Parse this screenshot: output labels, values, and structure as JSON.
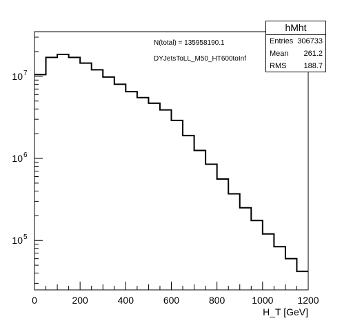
{
  "chart_data": {
    "type": "histogram",
    "title": "",
    "xlabel": "H_T [GeV]",
    "ylabel": "",
    "y_scale": "log",
    "xlim": [
      0,
      1200
    ],
    "ylim": [
      25000,
      35000000
    ],
    "x_ticks": [
      "0",
      "200",
      "400",
      "600",
      "800",
      "1000",
      "1200"
    ],
    "y_ticks": [
      {
        "base": "10",
        "exp": "5",
        "value": 100000
      },
      {
        "base": "10",
        "exp": "6",
        "value": 1000000
      },
      {
        "base": "10",
        "exp": "7",
        "value": 10000000
      }
    ],
    "bin_edges": [
      0,
      50,
      100,
      150,
      200,
      250,
      300,
      350,
      400,
      450,
      500,
      550,
      600,
      650,
      700,
      750,
      800,
      850,
      900,
      950,
      1000,
      1050,
      1100,
      1150,
      1200
    ],
    "values": [
      10500000,
      17000000,
      18500000,
      17000000,
      14500000,
      12000000,
      9800000,
      8000000,
      6500000,
      5500000,
      4700000,
      3900000,
      2900000,
      1900000,
      1250000,
      850000,
      560000,
      370000,
      250000,
      175000,
      120000,
      84000,
      60000,
      42000
    ],
    "legend": "none",
    "grid": false,
    "annotations": [
      "N(total) = 135958190.1",
      "DYJetsToLL_M50_HT600toInf"
    ],
    "stats": {
      "name": "hMht",
      "rows": [
        {
          "label": "Entries",
          "value": "306733"
        },
        {
          "label": "Mean",
          "value": "261.2"
        },
        {
          "label": "RMS",
          "value": "188.7"
        }
      ]
    },
    "colors": {
      "line": "#000000",
      "frame": "#000000",
      "background": "#ffffff"
    }
  }
}
